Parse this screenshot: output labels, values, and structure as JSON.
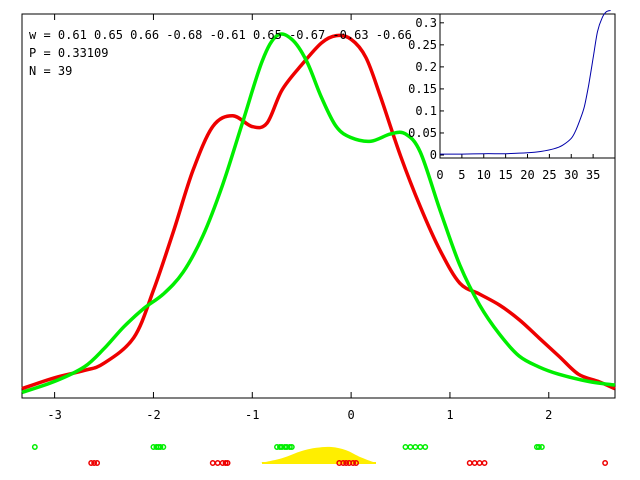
{
  "annotations": {
    "w_line": "w = 0.61 0.65 0.66 -0.68 -0.61 0.65 -0.67 -0.63 -0.66",
    "p_line": "P = 0.33109",
    "n_line": "N = 39"
  },
  "colors": {
    "red": "#ee0000",
    "green": "#00ee00",
    "blue": "#0000aa",
    "yellow": "#ffee00",
    "axis": "#000000",
    "background": "#ffffff"
  },
  "chart_data": [
    {
      "type": "line",
      "title": "",
      "xlabel": "",
      "ylabel": "",
      "xlim": [
        -3.33,
        2.67
      ],
      "ylim": [
        0,
        1.0
      ],
      "x_ticks": [
        "-3",
        "-2",
        "-1",
        "0",
        "1",
        "2"
      ],
      "y_ticks": [],
      "grid": false,
      "series": [
        {
          "color": "#ee0000",
          "x": [
            -3.33,
            -3.0,
            -2.7,
            -2.5,
            -2.2,
            -2.0,
            -1.8,
            -1.6,
            -1.4,
            -1.2,
            -1.0,
            -0.85,
            -0.7,
            -0.5,
            -0.3,
            -0.15,
            0.0,
            0.15,
            0.3,
            0.5,
            0.7,
            0.9,
            1.1,
            1.3,
            1.5,
            1.7,
            1.9,
            2.1,
            2.3,
            2.5,
            2.67
          ],
          "y": [
            0.02,
            0.05,
            0.07,
            0.09,
            0.16,
            0.29,
            0.45,
            0.62,
            0.74,
            0.77,
            0.74,
            0.75,
            0.84,
            0.91,
            0.97,
            0.99,
            0.98,
            0.93,
            0.82,
            0.66,
            0.52,
            0.4,
            0.31,
            0.28,
            0.25,
            0.21,
            0.16,
            0.11,
            0.06,
            0.04,
            0.02
          ]
        },
        {
          "color": "#00ee00",
          "x": [
            -3.33,
            -3.0,
            -2.7,
            -2.5,
            -2.3,
            -2.1,
            -1.9,
            -1.7,
            -1.5,
            -1.3,
            -1.1,
            -0.9,
            -0.75,
            -0.6,
            -0.45,
            -0.3,
            -0.15,
            0.0,
            0.2,
            0.4,
            0.55,
            0.7,
            0.9,
            1.1,
            1.3,
            1.5,
            1.7,
            1.9,
            2.1,
            2.4,
            2.67
          ],
          "y": [
            0.01,
            0.04,
            0.08,
            0.13,
            0.19,
            0.24,
            0.28,
            0.34,
            0.44,
            0.58,
            0.75,
            0.92,
            0.99,
            0.98,
            0.92,
            0.82,
            0.74,
            0.71,
            0.7,
            0.72,
            0.72,
            0.67,
            0.51,
            0.36,
            0.25,
            0.17,
            0.11,
            0.08,
            0.06,
            0.04,
            0.03
          ]
        },
        {
          "color": "#ffee00",
          "fill": true,
          "x": [
            -0.92,
            -0.7,
            -0.5,
            -0.35,
            -0.2,
            -0.05,
            0.1,
            0.25
          ],
          "y": [
            0.0,
            0.3,
            0.75,
            0.95,
            1.0,
            0.8,
            0.35,
            0.0
          ]
        }
      ],
      "rug": {
        "green_row": [
          -3.2,
          -2.0,
          -1.97,
          -1.95,
          -1.93,
          -1.9,
          -0.75,
          -0.72,
          -0.7,
          -0.67,
          -0.65,
          -0.62,
          -0.6,
          0.55,
          0.6,
          0.65,
          0.7,
          0.75,
          1.88,
          1.9,
          1.93
        ],
        "red_row": [
          -2.63,
          -2.6,
          -2.57,
          -1.4,
          -1.35,
          -1.3,
          -1.27,
          -1.25,
          -0.12,
          -0.08,
          -0.05,
          -0.02,
          0.02,
          0.05,
          1.2,
          1.25,
          1.3,
          1.35,
          2.57
        ]
      }
    },
    {
      "type": "line",
      "title": "",
      "xlabel": "",
      "ylabel": "",
      "xlim": [
        0,
        40
      ],
      "ylim": [
        0,
        0.32
      ],
      "x_ticks": [
        "0",
        "5",
        "10",
        "15",
        "20",
        "25",
        "30",
        "35"
      ],
      "y_ticks": [
        "0",
        "0.05",
        "0.1",
        "0.15",
        "0.2",
        "0.25",
        "0.3"
      ],
      "grid": false,
      "series": [
        {
          "color": "#0000aa",
          "x": [
            0,
            5,
            10,
            15,
            20,
            23,
            26,
            28,
            30,
            31,
            32,
            33,
            34,
            35,
            36,
            37,
            38,
            39
          ],
          "y": [
            0.002,
            0.002,
            0.003,
            0.003,
            0.005,
            0.008,
            0.014,
            0.022,
            0.038,
            0.055,
            0.08,
            0.11,
            0.16,
            0.22,
            0.28,
            0.31,
            0.325,
            0.328
          ]
        }
      ]
    }
  ]
}
